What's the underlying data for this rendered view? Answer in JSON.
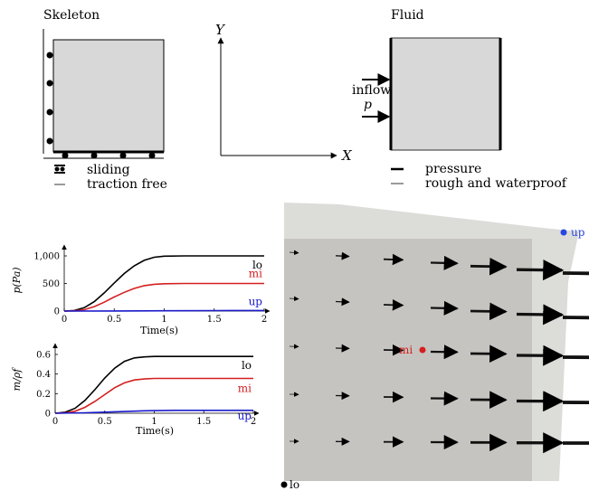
{
  "skeleton": {
    "title": "Skeleton",
    "legend": {
      "sliding": "sliding",
      "traction_free": "traction free"
    }
  },
  "axes": {
    "y_label": "Y",
    "x_label": "X"
  },
  "fluid": {
    "title": "Fluid",
    "inflow_label": "inflow",
    "pressure_symbol": "p",
    "legend": {
      "pressure": "pressure",
      "rough_waterproof": "rough and waterproof"
    }
  },
  "probes": {
    "lo": "lo",
    "mi": "mi",
    "up": "up"
  },
  "colors": {
    "lo": "#000000",
    "mi": "#d42020",
    "up": "#1a1acc",
    "panel": "#d8d8d8",
    "field_light": "#dcdcd8",
    "field_dark": "#c6c4c0"
  },
  "chart_data": [
    {
      "type": "line",
      "ylabel": "p(Pa)",
      "xlabel": "Time(s)",
      "xlim": [
        0,
        2
      ],
      "ylim": [
        0,
        1000
      ],
      "xticks": [
        "0",
        "0.5",
        "1",
        "1.5",
        "2"
      ],
      "yticks": [
        "0",
        "500",
        "1,000"
      ],
      "series": [
        {
          "name": "lo",
          "color": "#000000",
          "x": [
            0,
            0.1,
            0.2,
            0.3,
            0.4,
            0.5,
            0.6,
            0.7,
            0.8,
            0.9,
            1.0,
            1.2,
            1.5,
            2.0
          ],
          "y": [
            0,
            10,
            60,
            170,
            330,
            510,
            680,
            820,
            920,
            975,
            995,
            1000,
            1000,
            1000
          ]
        },
        {
          "name": "mi",
          "color": "#d42020",
          "x": [
            0,
            0.1,
            0.2,
            0.3,
            0.4,
            0.5,
            0.6,
            0.7,
            0.8,
            0.9,
            1.0,
            1.2,
            1.5,
            2.0
          ],
          "y": [
            0,
            3,
            25,
            80,
            160,
            255,
            340,
            410,
            460,
            485,
            495,
            500,
            500,
            500
          ]
        },
        {
          "name": "up",
          "color": "#1a1acc",
          "x": [
            0,
            0.5,
            1.0,
            1.5,
            2.0
          ],
          "y": [
            0,
            2,
            5,
            8,
            10
          ]
        }
      ]
    },
    {
      "type": "line",
      "ylabel": "m/ρf",
      "xlabel": "Time(s)",
      "xlim": [
        0,
        2
      ],
      "ylim": [
        0,
        0.6
      ],
      "xticks": [
        "0",
        "0.5",
        "1",
        "1.5",
        "2"
      ],
      "yticks": [
        "0",
        "0.2",
        "0.4",
        "0.6"
      ],
      "series": [
        {
          "name": "lo",
          "color": "#000000",
          "x": [
            0,
            0.1,
            0.2,
            0.3,
            0.4,
            0.5,
            0.6,
            0.7,
            0.8,
            0.9,
            1.0,
            1.2,
            1.5,
            2.0
          ],
          "y": [
            0,
            0.01,
            0.05,
            0.13,
            0.24,
            0.36,
            0.46,
            0.53,
            0.565,
            0.575,
            0.58,
            0.58,
            0.58,
            0.58
          ]
        },
        {
          "name": "mi",
          "color": "#d42020",
          "x": [
            0,
            0.1,
            0.2,
            0.3,
            0.4,
            0.5,
            0.6,
            0.7,
            0.8,
            0.9,
            1.0,
            1.2,
            1.5,
            2.0
          ],
          "y": [
            0,
            0.003,
            0.02,
            0.06,
            0.12,
            0.19,
            0.26,
            0.31,
            0.34,
            0.35,
            0.355,
            0.355,
            0.355,
            0.355
          ]
        },
        {
          "name": "up",
          "color": "#1a1acc",
          "x": [
            0,
            0.3,
            0.6,
            0.9,
            1.2,
            2.0
          ],
          "y": [
            0,
            0.005,
            0.015,
            0.025,
            0.03,
            0.03
          ]
        }
      ]
    }
  ]
}
